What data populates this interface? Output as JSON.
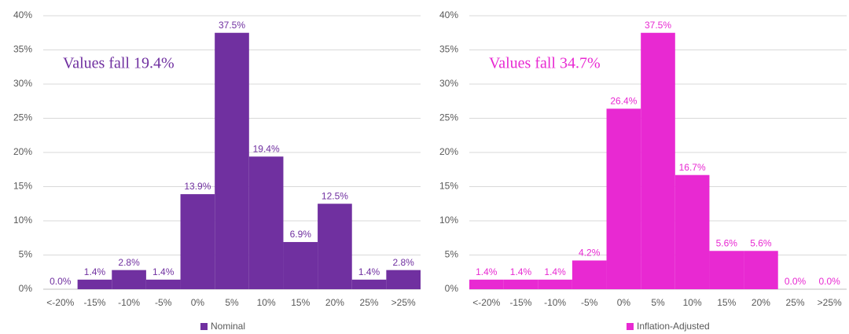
{
  "chart_data": [
    {
      "type": "bar",
      "annotation": "Values fall 19.4%",
      "categories": [
        "<-20%",
        "-15%",
        "-10%",
        "-5%",
        "0%",
        "5%",
        "10%",
        "15%",
        "20%",
        "25%",
        ">25%"
      ],
      "series": [
        {
          "name": "Nominal",
          "color": "#7030a0",
          "values": [
            0.0,
            1.4,
            2.8,
            1.4,
            13.9,
            37.5,
            19.4,
            6.9,
            12.5,
            1.4,
            2.8
          ],
          "value_labels": [
            "0.0%",
            "1.4%",
            "2.8%",
            "1.4%",
            "13.9%",
            "37.5%",
            "19.4%",
            "6.9%",
            "12.5%",
            "1.4%",
            "2.8%"
          ]
        }
      ],
      "ylim": [
        0,
        40
      ],
      "yticks": [
        {
          "value": 0,
          "label": "0%"
        },
        {
          "value": 5,
          "label": "5%"
        },
        {
          "value": 10,
          "label": "10%"
        },
        {
          "value": 15,
          "label": "15%"
        },
        {
          "value": 20,
          "label": "20%"
        },
        {
          "value": 25,
          "label": "25%"
        },
        {
          "value": 30,
          "label": "30%"
        },
        {
          "value": 35,
          "label": "35%"
        },
        {
          "value": 40,
          "label": "40%"
        }
      ],
      "grid": true,
      "legend": "bottom"
    },
    {
      "type": "bar",
      "annotation": "Values fall 34.7%",
      "categories": [
        "<-20%",
        "-15%",
        "-10%",
        "-5%",
        "0%",
        "5%",
        "10%",
        "15%",
        "20%",
        "25%",
        ">25%"
      ],
      "series": [
        {
          "name": "Inflation-Adjusted",
          "color": "#e829d2",
          "values": [
            1.4,
            1.4,
            1.4,
            4.2,
            26.4,
            37.5,
            16.7,
            5.6,
            5.6,
            0.0,
            0.0
          ],
          "value_labels": [
            "1.4%",
            "1.4%",
            "1.4%",
            "4.2%",
            "26.4%",
            "37.5%",
            "16.7%",
            "5.6%",
            "5.6%",
            "0.0%",
            "0.0%"
          ]
        }
      ],
      "ylim": [
        0,
        40
      ],
      "yticks": [
        {
          "value": 0,
          "label": "0%"
        },
        {
          "value": 5,
          "label": "5%"
        },
        {
          "value": 10,
          "label": "10%"
        },
        {
          "value": 15,
          "label": "15%"
        },
        {
          "value": 20,
          "label": "20%"
        },
        {
          "value": 25,
          "label": "25%"
        },
        {
          "value": 30,
          "label": "30%"
        },
        {
          "value": 35,
          "label": "35%"
        },
        {
          "value": 40,
          "label": "40%"
        }
      ],
      "grid": true,
      "legend": "bottom"
    }
  ]
}
